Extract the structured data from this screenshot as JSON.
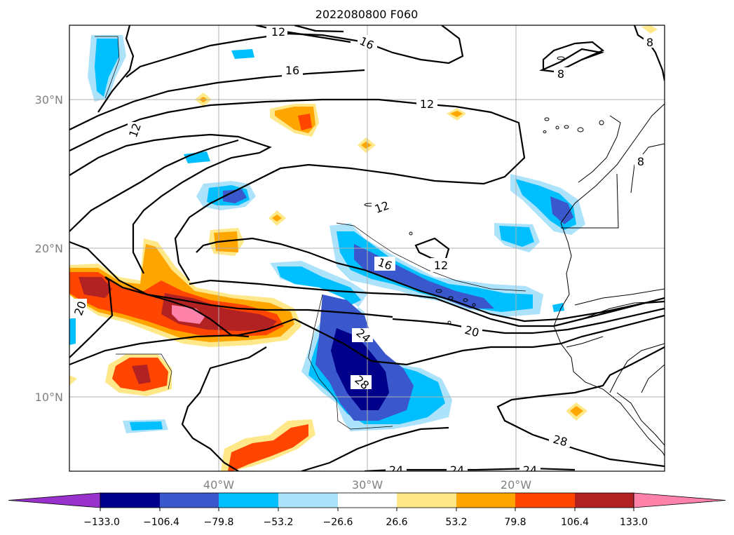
{
  "title": "2022080800 F060",
  "lat_labels": [
    "30°N",
    "20°N",
    "10°N"
  ],
  "lon_labels": [
    "40°W",
    "30°W",
    "20°W"
  ],
  "contour_labels": [
    "12",
    "16",
    "16",
    "12",
    "12",
    "8",
    "8",
    "8",
    "12",
    "12",
    "16",
    "20",
    "20",
    "24",
    "28",
    "28",
    "24",
    "24",
    "24"
  ],
  "colorbar": {
    "tick_labels": [
      "−133.0",
      "−106.4",
      "−79.8",
      "−53.2",
      "−26.6",
      "26.6",
      "53.2",
      "79.8",
      "106.4",
      "133.0"
    ],
    "colors": [
      "#9932cc",
      "#00008b",
      "#3a57cc",
      "#00bfff",
      "#ade2fb",
      "#ffffff",
      "#ffe88a",
      "#ffa500",
      "#ff4500",
      "#b22222",
      "#ff82ab"
    ]
  }
}
